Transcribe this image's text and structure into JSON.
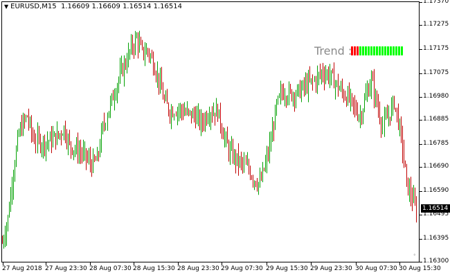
{
  "header": {
    "arrow": "▼",
    "symbol": "EURUSD,M15",
    "ohlc": "1.16609 1.16609 1.16514 1.16514"
  },
  "trend": {
    "label": "Trend :",
    "segments": [
      "#ff0000",
      "#ff0000",
      "#ff0000",
      "#00ff00",
      "#00ff00",
      "#00ff00",
      "#00ff00",
      "#00ff00",
      "#00ff00",
      "#00ff00",
      "#00ff00",
      "#00ff00",
      "#00ff00",
      "#00ff00",
      "#00ff00",
      "#00ff00",
      "#00ff00",
      "#00ff00",
      "#00ff00"
    ]
  },
  "price_tag": "1.16514",
  "scroll_mark": "°",
  "colors": {
    "bull": "#00a000",
    "bear": "#c00000",
    "background": "#ffffff",
    "axis": "#000000"
  },
  "chart_data": {
    "type": "bar",
    "y_ticks": [
      "1.17370",
      "1.17275",
      "1.17175",
      "1.17075",
      "1.16980",
      "1.16885",
      "1.16785",
      "1.16690",
      "1.16590",
      "1.16495",
      "1.16395",
      "1.16300"
    ],
    "x_ticks": [
      "27 Aug 2018",
      "27 Aug 23:30",
      "28 Aug 07:30",
      "28 Aug 15:30",
      "28 Aug 23:30",
      "29 Aug 07:30",
      "29 Aug 15:30",
      "29 Aug 23:30",
      "30 Aug 07:30",
      "30 Aug 15:30"
    ],
    "ylim": [
      1.163,
      1.1737
    ],
    "current_price": 1.16514,
    "trend_anchors": [
      [
        0,
        1.1638
      ],
      [
        4,
        1.1648
      ],
      [
        8,
        1.1668
      ],
      [
        12,
        1.1683
      ],
      [
        16,
        1.1688
      ],
      [
        18,
        1.169
      ],
      [
        22,
        1.1681
      ],
      [
        28,
        1.1679
      ],
      [
        34,
        1.168
      ],
      [
        40,
        1.1682
      ],
      [
        44,
        1.1685
      ],
      [
        48,
        1.1678
      ],
      [
        54,
        1.1676
      ],
      [
        60,
        1.1673
      ],
      [
        64,
        1.167
      ],
      [
        68,
        1.1672
      ],
      [
        72,
        1.1685
      ],
      [
        76,
        1.1693
      ],
      [
        80,
        1.17
      ],
      [
        84,
        1.1707
      ],
      [
        88,
        1.1712
      ],
      [
        92,
        1.1718
      ],
      [
        96,
        1.1722
      ],
      [
        100,
        1.1716
      ],
      [
        104,
        1.1717
      ],
      [
        108,
        1.1712
      ],
      [
        112,
        1.1705
      ],
      [
        116,
        1.1696
      ],
      [
        120,
        1.1692
      ],
      [
        126,
        1.1693
      ],
      [
        132,
        1.1691
      ],
      [
        138,
        1.169
      ],
      [
        142,
        1.1687
      ],
      [
        148,
        1.1692
      ],
      [
        154,
        1.1692
      ],
      [
        158,
        1.1683
      ],
      [
        162,
        1.1676
      ],
      [
        166,
        1.1673
      ],
      [
        172,
        1.167
      ],
      [
        176,
        1.1668
      ],
      [
        180,
        1.1664
      ],
      [
        184,
        1.1662
      ],
      [
        188,
        1.167
      ],
      [
        192,
        1.168
      ],
      [
        196,
        1.1694
      ],
      [
        200,
        1.17
      ],
      [
        206,
        1.1699
      ],
      [
        212,
        1.17
      ],
      [
        218,
        1.1703
      ],
      [
        224,
        1.1705
      ],
      [
        228,
        1.1708
      ],
      [
        234,
        1.1707
      ],
      [
        240,
        1.1702
      ],
      [
        244,
        1.1699
      ],
      [
        248,
        1.1697
      ],
      [
        252,
        1.1693
      ],
      [
        256,
        1.169
      ],
      [
        260,
        1.1698
      ],
      [
        264,
        1.1705
      ],
      [
        268,
        1.1695
      ],
      [
        272,
        1.1686
      ],
      [
        276,
        1.169
      ],
      [
        280,
        1.1696
      ],
      [
        283,
        1.1688
      ],
      [
        286,
        1.1677
      ],
      [
        289,
        1.1662
      ],
      [
        293,
        1.1656
      ],
      [
        296,
        1.1651
      ]
    ],
    "n_bars": 297,
    "seed": 7
  }
}
